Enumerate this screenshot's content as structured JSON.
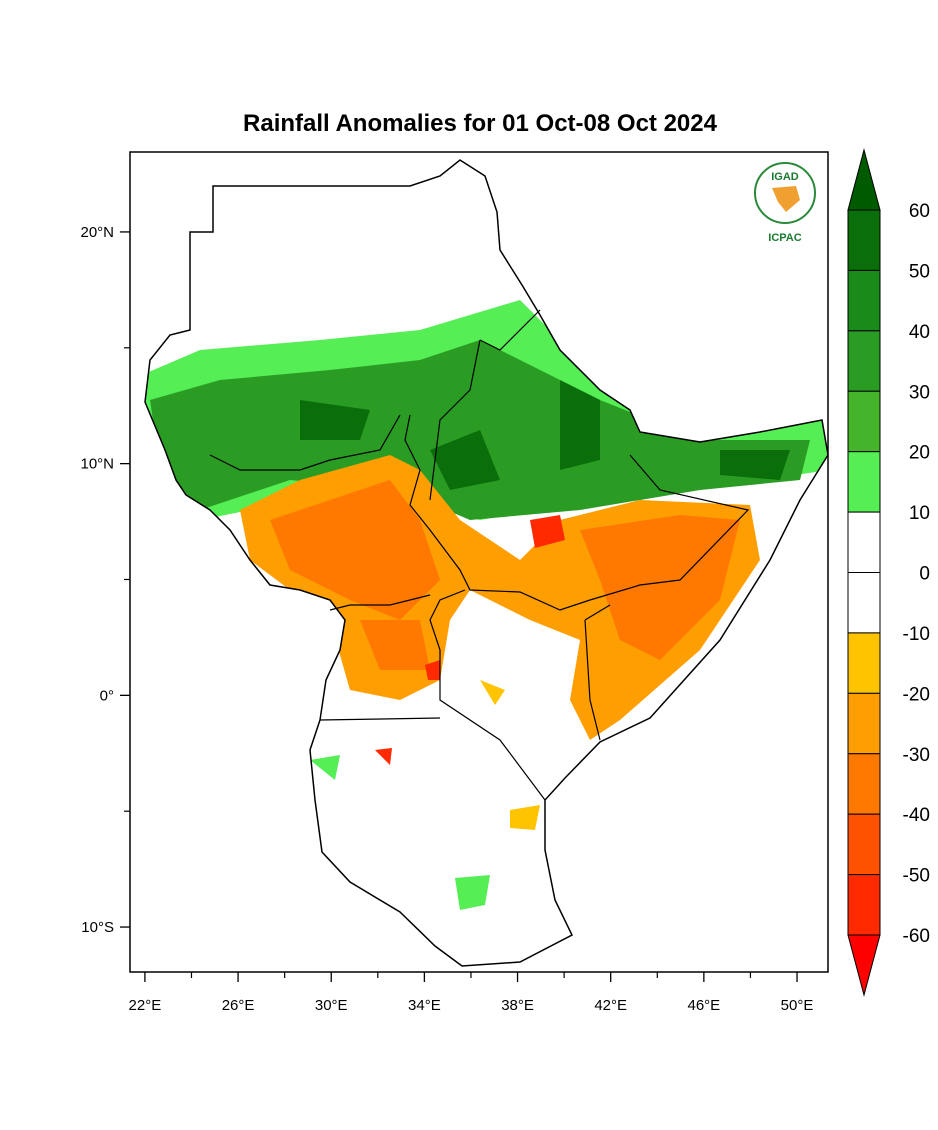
{
  "map": {
    "title": "Rainfall Anomalies for 01 Oct-08 Oct 2024",
    "xlim": [
      21.36,
      51.33
    ],
    "ylim": [
      -11.94,
      23.45
    ],
    "xticks": [
      {
        "value": 22,
        "label": "22°E"
      },
      {
        "value": 26,
        "label": "26°E"
      },
      {
        "value": 30,
        "label": "30°E"
      },
      {
        "value": 34,
        "label": "34°E"
      },
      {
        "value": 38,
        "label": "38°E"
      },
      {
        "value": 42,
        "label": "42°E"
      },
      {
        "value": 46,
        "label": "46°E"
      },
      {
        "value": 50,
        "label": "50°E"
      }
    ],
    "xminor": [
      24,
      28,
      32,
      36,
      40,
      44,
      48
    ],
    "yticks": [
      {
        "value": 20,
        "label": "20°N"
      },
      {
        "value": 10,
        "label": "10°N"
      },
      {
        "value": 0,
        "label": "0°"
      },
      {
        "value": -10,
        "label": "10°S"
      }
    ],
    "yminor": [
      15,
      5,
      -5
    ],
    "colorbar": {
      "levels": [
        60,
        50,
        40,
        30,
        20,
        10,
        0,
        -10,
        -20,
        -30,
        -40,
        -50,
        -60
      ],
      "colors": [
        "#005a00",
        "#0a6e0a",
        "#1a8a1a",
        "#2a9c24",
        "#44b52a",
        "#55ee55",
        "#ffffff",
        "#ffffff",
        "#ffc400",
        "#ff9e00",
        "#ff7800",
        "#ff5200",
        "#ff2a00",
        "#ff0000"
      ]
    },
    "logo": {
      "name": "IGAD",
      "org": "ICPAC"
    }
  }
}
